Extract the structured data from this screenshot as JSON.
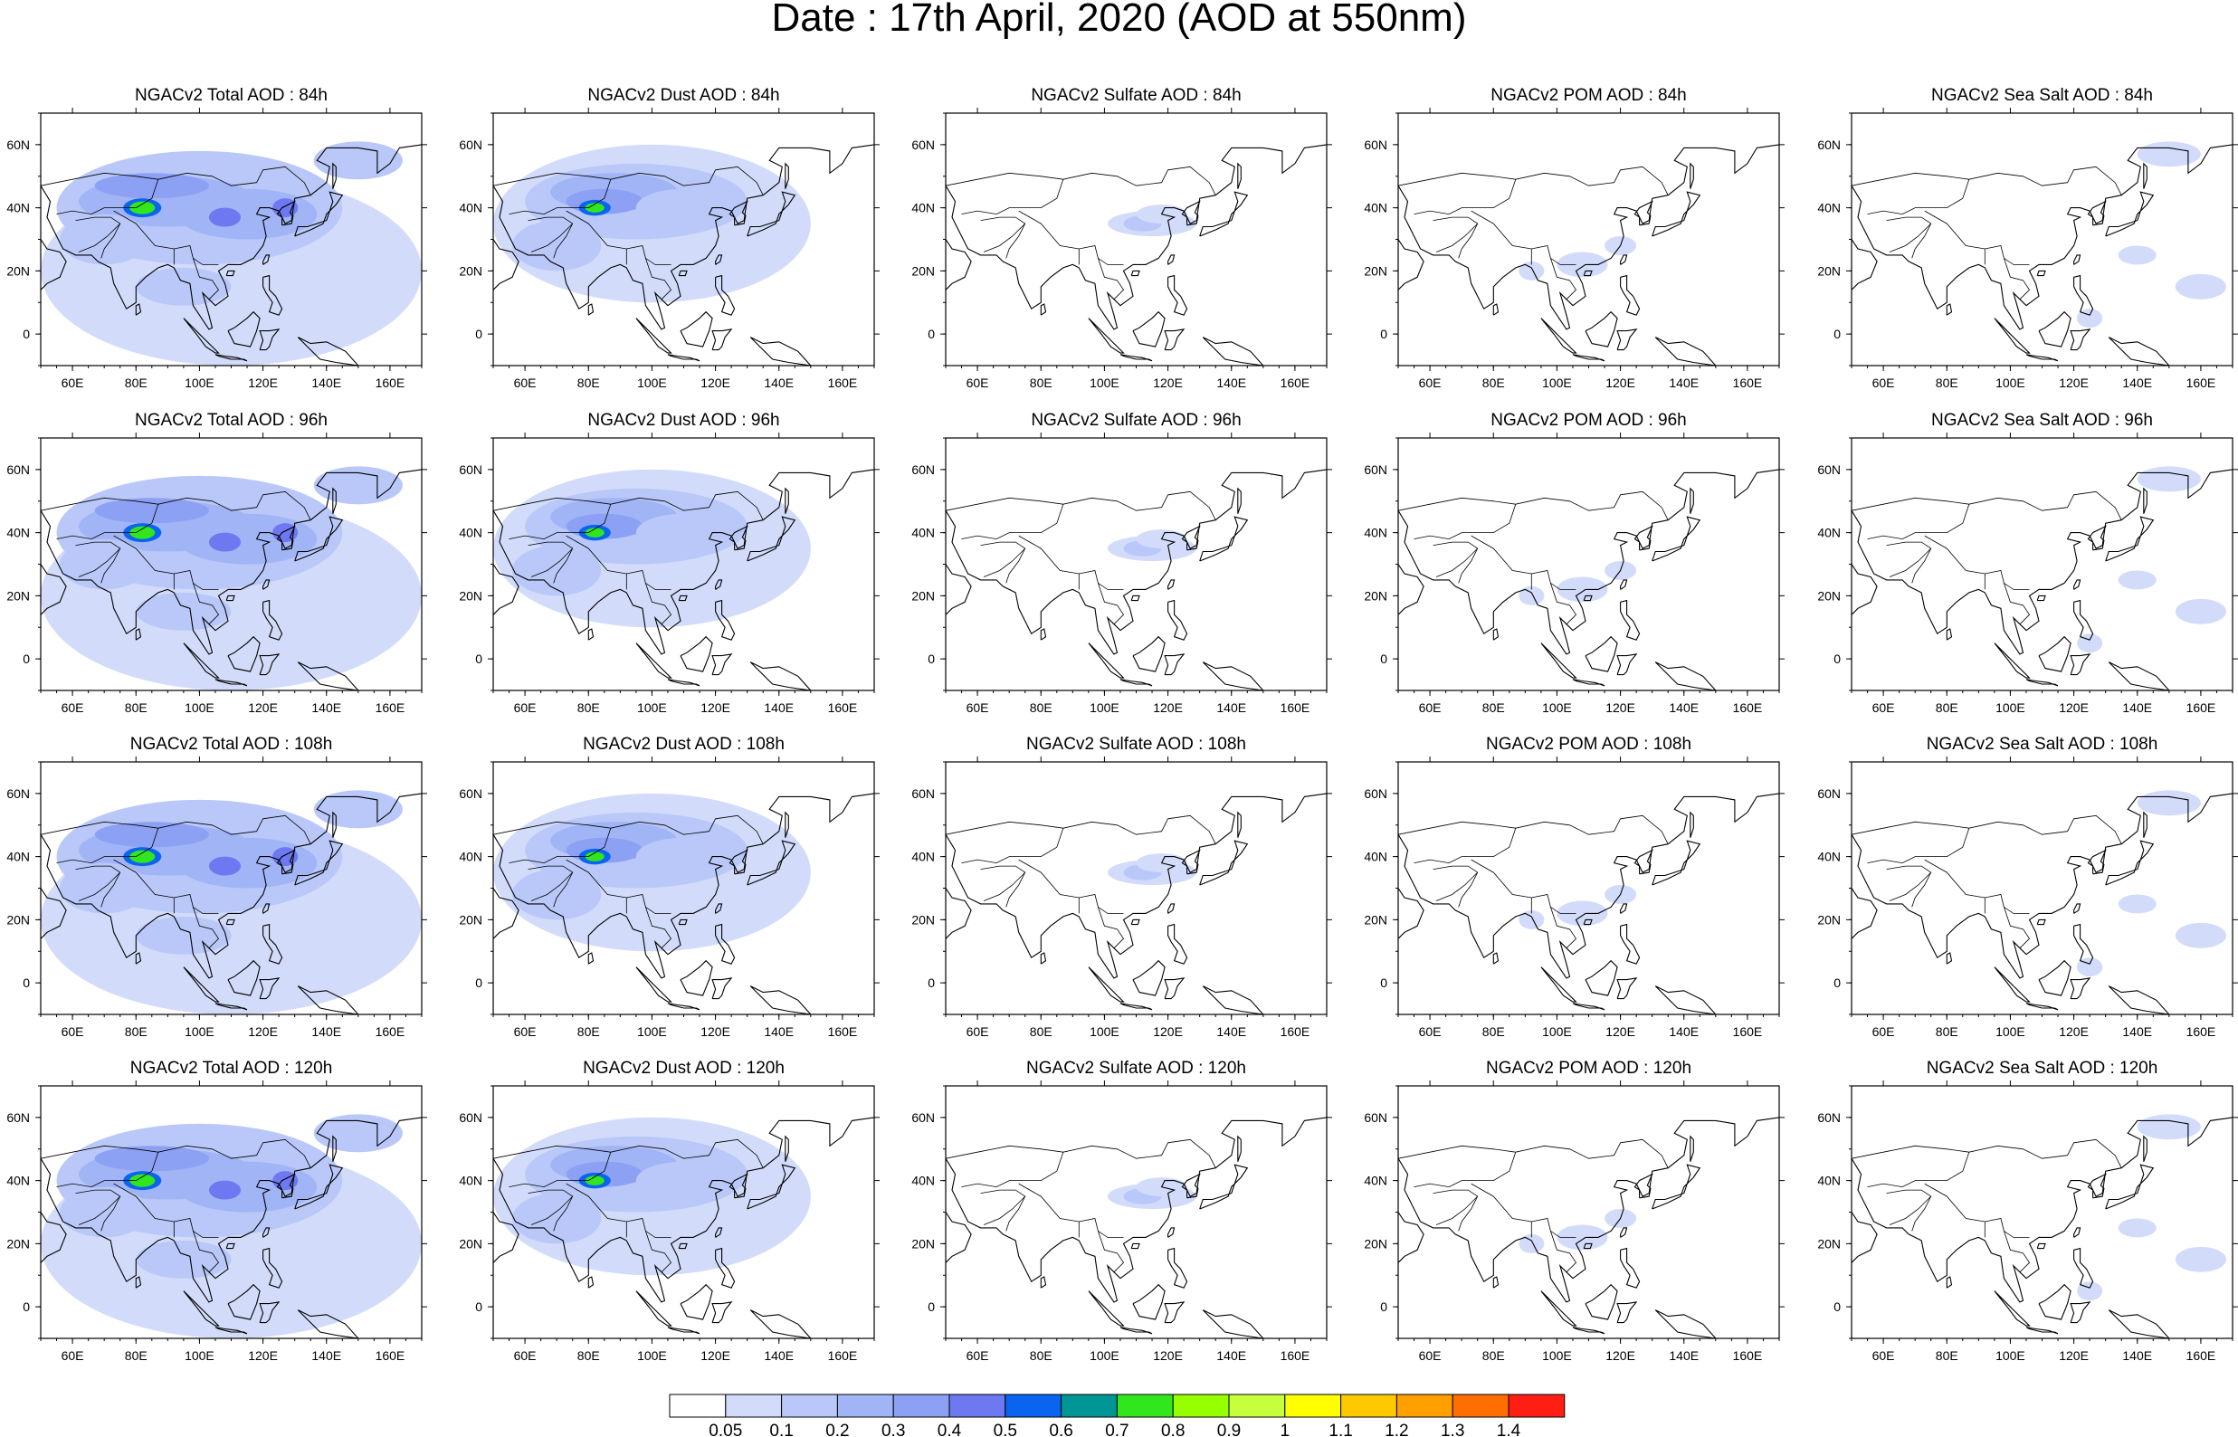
{
  "title": "Date : 17th April, 2020 (AOD at 550nm)",
  "lat_ticks": [
    "60N",
    "40N",
    "20N",
    "0"
  ],
  "lon_ticks": [
    "60E",
    "80E",
    "100E",
    "120E",
    "140E",
    "160E"
  ],
  "panels": [
    [
      {
        "title": "NGACv2 Total AOD : 84h",
        "type": "total"
      },
      {
        "title": "NGACv2 Dust AOD : 84h",
        "type": "dust"
      },
      {
        "title": "NGACv2 Sulfate AOD : 84h",
        "type": "sulfate"
      },
      {
        "title": "NGACv2 POM AOD : 84h",
        "type": "pom"
      },
      {
        "title": "NGACv2 Sea Salt AOD : 84h",
        "type": "seasalt"
      }
    ],
    [
      {
        "title": "NGACv2 Total AOD : 96h",
        "type": "total"
      },
      {
        "title": "NGACv2 Dust AOD : 96h",
        "type": "dust"
      },
      {
        "title": "NGACv2 Sulfate AOD : 96h",
        "type": "sulfate"
      },
      {
        "title": "NGACv2 POM AOD : 96h",
        "type": "pom"
      },
      {
        "title": "NGACv2 Sea Salt AOD : 96h",
        "type": "seasalt"
      }
    ],
    [
      {
        "title": "NGACv2 Total AOD : 108h",
        "type": "total"
      },
      {
        "title": "NGACv2 Dust AOD : 108h",
        "type": "dust"
      },
      {
        "title": "NGACv2 Sulfate AOD : 108h",
        "type": "sulfate"
      },
      {
        "title": "NGACv2 POM AOD : 108h",
        "type": "pom"
      },
      {
        "title": "NGACv2 Sea Salt AOD : 108h",
        "type": "seasalt"
      }
    ],
    [
      {
        "title": "NGACv2 Total AOD : 120h",
        "type": "total"
      },
      {
        "title": "NGACv2 Dust AOD : 120h",
        "type": "dust"
      },
      {
        "title": "NGACv2 Sulfate AOD : 120h",
        "type": "sulfate"
      },
      {
        "title": "NGACv2 POM AOD : 120h",
        "type": "pom"
      },
      {
        "title": "NGACv2 Sea Salt  AOD : 120h",
        "type": "seasalt"
      }
    ]
  ],
  "colorbar": {
    "colors": [
      "#ffffff",
      "#d2dcfa",
      "#b9c8f8",
      "#a0b4f6",
      "#8ca0f4",
      "#6e78f0",
      "#0a64f0",
      "#009696",
      "#32e61e",
      "#96ff00",
      "#c8ff3c",
      "#ffff00",
      "#ffc800",
      "#ffa000",
      "#ff6e00",
      "#ff1e14"
    ],
    "labels": [
      "0.05",
      "0.1",
      "0.2",
      "0.3",
      "0.4",
      "0.5",
      "0.6",
      "0.7",
      "0.8",
      "0.9",
      "1",
      "1.1",
      "1.2",
      "1.3",
      "1.4"
    ]
  }
}
